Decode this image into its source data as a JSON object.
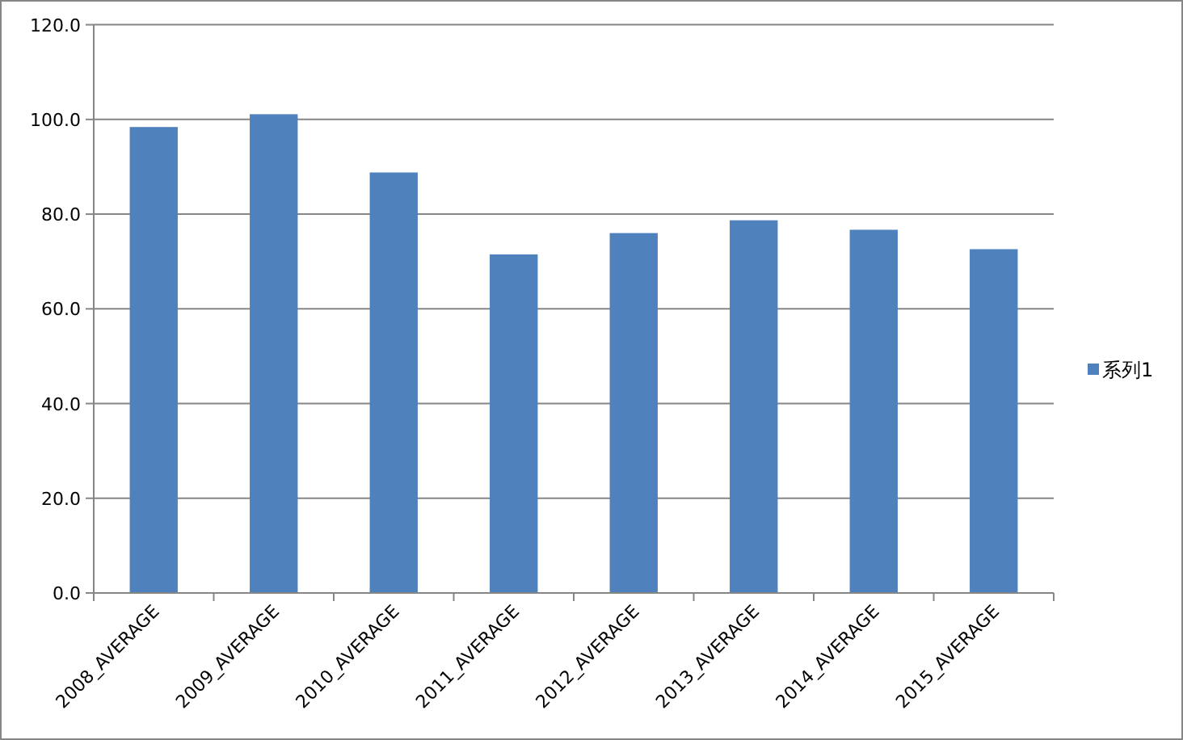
{
  "chart_data": {
    "type": "bar",
    "categories": [
      "2008_AVERAGE",
      "2009_AVERAGE",
      "2010_AVERAGE",
      "2011_AVERAGE",
      "2012_AVERAGE",
      "2013_AVERAGE",
      "2014_AVERAGE",
      "2015_AVERAGE"
    ],
    "series": [
      {
        "name": "系列1",
        "color": "#4f81bd",
        "values": [
          98.4,
          101.1,
          88.8,
          71.5,
          76.0,
          78.7,
          76.7,
          72.6
        ]
      }
    ],
    "ylim": [
      0,
      120
    ],
    "yticks": [
      {
        "value": 0,
        "label": "0.0"
      },
      {
        "value": 20,
        "label": "20.0"
      },
      {
        "value": 40,
        "label": "40.0"
      },
      {
        "value": 60,
        "label": "60.0"
      },
      {
        "value": 80,
        "label": "80.0"
      },
      {
        "value": 100,
        "label": "100.0"
      },
      {
        "value": 120,
        "label": "120.0"
      }
    ],
    "grid": "y",
    "legend": "right"
  }
}
